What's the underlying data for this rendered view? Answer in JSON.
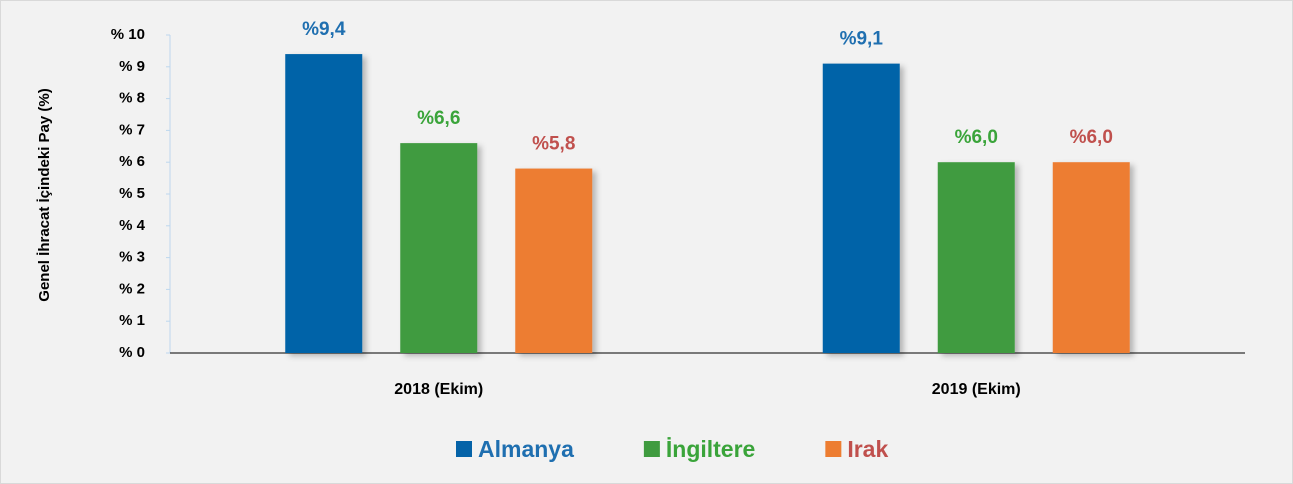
{
  "chart_data": {
    "type": "bar",
    "y_label": "Genel İhracat İçindeki Pay  (%)",
    "categories": [
      "2018 (Ekim)",
      "2019 (Ekim)"
    ],
    "series": [
      {
        "name": "Almanya",
        "color": "#0563a8",
        "label_color": "#1f6fb0",
        "values": [
          9.4,
          9.1
        ],
        "value_labels": [
          "%9,4",
          "%9,1"
        ]
      },
      {
        "name": "İngiltere",
        "color": "#3f9b3f",
        "label_color": "#3aa43a",
        "values": [
          6.6,
          6.0
        ],
        "value_labels": [
          "%6,6",
          "%6,0"
        ]
      },
      {
        "name": "Irak",
        "color": "#ed7d31",
        "label_color": "#c0504d",
        "values": [
          5.8,
          6.0
        ],
        "value_labels": [
          "%5,8",
          "%6,0"
        ]
      }
    ],
    "ylim": [
      0,
      10
    ],
    "yticks": [
      {
        "value": 0,
        "label": "% 0"
      },
      {
        "value": 1,
        "label": "% 1"
      },
      {
        "value": 2,
        "label": "% 2"
      },
      {
        "value": 3,
        "label": "% 3"
      },
      {
        "value": 4,
        "label": "% 4"
      },
      {
        "value": 5,
        "label": "% 5"
      },
      {
        "value": 6,
        "label": "% 6"
      },
      {
        "value": 7,
        "label": "% 7"
      },
      {
        "value": 8,
        "label": "% 8"
      },
      {
        "value": 9,
        "label": "% 9"
      },
      {
        "value": 10,
        "label": "% 10"
      }
    ],
    "legend": "bottom"
  }
}
